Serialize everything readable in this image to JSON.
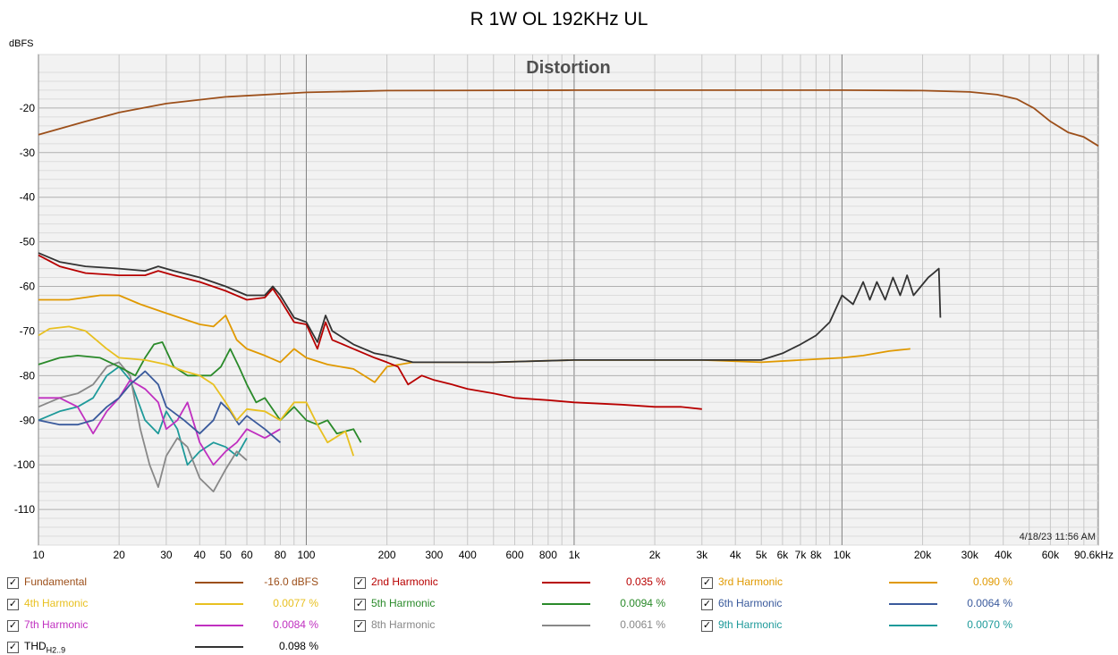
{
  "title": "R 1W OL 192KHz UL",
  "chart_data": {
    "type": "line",
    "title": "Distortion",
    "ylabel": "dBFS",
    "xlabel": "",
    "xscale": "log",
    "xlim": [
      10,
      90600
    ],
    "ylim": [
      -118,
      -8
    ],
    "timestamp": "4/18/23 11:56 AM",
    "x_ticks": [
      {
        "v": 10,
        "l": "10"
      },
      {
        "v": 20,
        "l": "20"
      },
      {
        "v": 30,
        "l": "30"
      },
      {
        "v": 40,
        "l": "40"
      },
      {
        "v": 50,
        "l": "50"
      },
      {
        "v": 60,
        "l": "60"
      },
      {
        "v": 80,
        "l": "80"
      },
      {
        "v": 100,
        "l": "100"
      },
      {
        "v": 200,
        "l": "200"
      },
      {
        "v": 300,
        "l": "300"
      },
      {
        "v": 400,
        "l": "400"
      },
      {
        "v": 600,
        "l": "600"
      },
      {
        "v": 800,
        "l": "800"
      },
      {
        "v": 1000,
        "l": "1k"
      },
      {
        "v": 2000,
        "l": "2k"
      },
      {
        "v": 3000,
        "l": "3k"
      },
      {
        "v": 4000,
        "l": "4k"
      },
      {
        "v": 5000,
        "l": "5k"
      },
      {
        "v": 6000,
        "l": "6k"
      },
      {
        "v": 7000,
        "l": "7k"
      },
      {
        "v": 8000,
        "l": "8k"
      },
      {
        "v": 10000,
        "l": "10k"
      },
      {
        "v": 20000,
        "l": "20k"
      },
      {
        "v": 30000,
        "l": "30k"
      },
      {
        "v": 40000,
        "l": "40k"
      },
      {
        "v": 60000,
        "l": "60k"
      },
      {
        "v": 90600,
        "l": "90.6kHz"
      }
    ],
    "y_ticks": [
      {
        "v": -20,
        "l": "-20"
      },
      {
        "v": -30,
        "l": "-30"
      },
      {
        "v": -40,
        "l": "-40"
      },
      {
        "v": -50,
        "l": "-50"
      },
      {
        "v": -60,
        "l": "-60"
      },
      {
        "v": -70,
        "l": "-70"
      },
      {
        "v": -80,
        "l": "-80"
      },
      {
        "v": -90,
        "l": "-90"
      },
      {
        "v": -100,
        "l": "-100"
      },
      {
        "v": -110,
        "l": "-110"
      }
    ],
    "series": [
      {
        "name": "Fundamental",
        "value": "-16.0 dBFS",
        "color": "#9c4f1a",
        "points": [
          [
            10,
            -26
          ],
          [
            15,
            -23
          ],
          [
            20,
            -21
          ],
          [
            30,
            -19
          ],
          [
            50,
            -17.5
          ],
          [
            100,
            -16.5
          ],
          [
            200,
            -16.1
          ],
          [
            1000,
            -16
          ],
          [
            10000,
            -16
          ],
          [
            20000,
            -16.1
          ],
          [
            30000,
            -16.4
          ],
          [
            38000,
            -17
          ],
          [
            45000,
            -18
          ],
          [
            52000,
            -20
          ],
          [
            60000,
            -23
          ],
          [
            70000,
            -25.5
          ],
          [
            80000,
            -26.5
          ],
          [
            90600,
            -28.5
          ]
        ]
      },
      {
        "name": "2nd Harmonic",
        "value": "0.035 %",
        "color": "#b80000",
        "points": [
          [
            10,
            -53
          ],
          [
            12,
            -55.5
          ],
          [
            15,
            -57
          ],
          [
            20,
            -57.5
          ],
          [
            25,
            -57.5
          ],
          [
            28,
            -56.5
          ],
          [
            32,
            -57.5
          ],
          [
            40,
            -59
          ],
          [
            50,
            -61
          ],
          [
            60,
            -63
          ],
          [
            70,
            -62.5
          ],
          [
            75,
            -60.5
          ],
          [
            80,
            -63
          ],
          [
            90,
            -68
          ],
          [
            100,
            -68.5
          ],
          [
            110,
            -74
          ],
          [
            118,
            -68
          ],
          [
            125,
            -72
          ],
          [
            150,
            -74
          ],
          [
            180,
            -76
          ],
          [
            200,
            -77
          ],
          [
            220,
            -78
          ],
          [
            240,
            -82
          ],
          [
            270,
            -80
          ],
          [
            300,
            -81
          ],
          [
            350,
            -82
          ],
          [
            400,
            -83
          ],
          [
            500,
            -84
          ],
          [
            600,
            -85
          ],
          [
            800,
            -85.5
          ],
          [
            1000,
            -86
          ],
          [
            1500,
            -86.5
          ],
          [
            2000,
            -87
          ],
          [
            2500,
            -87
          ],
          [
            3000,
            -87.5
          ]
        ]
      },
      {
        "name": "3rd Harmonic",
        "value": "0.090 %",
        "color": "#e09900",
        "points": [
          [
            10,
            -63
          ],
          [
            13,
            -63
          ],
          [
            17,
            -62
          ],
          [
            20,
            -62
          ],
          [
            24,
            -64
          ],
          [
            30,
            -66
          ],
          [
            40,
            -68.5
          ],
          [
            45,
            -69
          ],
          [
            50,
            -66.5
          ],
          [
            55,
            -72
          ],
          [
            60,
            -74
          ],
          [
            70,
            -75.5
          ],
          [
            80,
            -77
          ],
          [
            90,
            -74
          ],
          [
            100,
            -76
          ],
          [
            120,
            -77.5
          ],
          [
            150,
            -78.5
          ],
          [
            180,
            -81.5
          ],
          [
            200,
            -78
          ],
          [
            250,
            -77
          ],
          [
            300,
            -77
          ],
          [
            500,
            -77
          ],
          [
            1000,
            -76.5
          ],
          [
            3000,
            -76.5
          ],
          [
            5000,
            -77
          ],
          [
            7000,
            -76.5
          ],
          [
            10000,
            -76
          ],
          [
            12000,
            -75.5
          ],
          [
            15000,
            -74.5
          ],
          [
            18000,
            -74
          ]
        ]
      },
      {
        "name": "4th Harmonic",
        "value": "0.0077 %",
        "color": "#e8c020",
        "points": [
          [
            10,
            -71
          ],
          [
            11,
            -69.5
          ],
          [
            13,
            -69
          ],
          [
            15,
            -70
          ],
          [
            18,
            -74
          ],
          [
            20,
            -76
          ],
          [
            25,
            -76.5
          ],
          [
            30,
            -77.5
          ],
          [
            35,
            -79
          ],
          [
            40,
            -80
          ],
          [
            45,
            -82
          ],
          [
            50,
            -86
          ],
          [
            55,
            -90
          ],
          [
            60,
            -87.5
          ],
          [
            70,
            -88
          ],
          [
            80,
            -90
          ],
          [
            90,
            -86
          ],
          [
            100,
            -86
          ],
          [
            110,
            -91
          ],
          [
            120,
            -95
          ],
          [
            140,
            -92.5
          ],
          [
            150,
            -98
          ]
        ]
      },
      {
        "name": "5th Harmonic",
        "value": "0.0094 %",
        "color": "#2a8a2a",
        "points": [
          [
            10,
            -77.5
          ],
          [
            12,
            -76
          ],
          [
            14,
            -75.5
          ],
          [
            17,
            -76
          ],
          [
            20,
            -78
          ],
          [
            23,
            -80
          ],
          [
            25,
            -76
          ],
          [
            27,
            -73
          ],
          [
            29,
            -72.5
          ],
          [
            32,
            -78
          ],
          [
            36,
            -80
          ],
          [
            40,
            -80
          ],
          [
            44,
            -80
          ],
          [
            48,
            -78
          ],
          [
            52,
            -74
          ],
          [
            56,
            -78
          ],
          [
            60,
            -82
          ],
          [
            65,
            -86
          ],
          [
            70,
            -85
          ],
          [
            80,
            -90
          ],
          [
            90,
            -87
          ],
          [
            100,
            -90
          ],
          [
            110,
            -91
          ],
          [
            120,
            -90
          ],
          [
            130,
            -93
          ],
          [
            150,
            -92
          ],
          [
            160,
            -95
          ]
        ]
      },
      {
        "name": "6th Harmonic",
        "value": "0.0064 %",
        "color": "#3a5a9c",
        "points": [
          [
            10,
            -90
          ],
          [
            12,
            -91
          ],
          [
            14,
            -91
          ],
          [
            16,
            -90
          ],
          [
            18,
            -87
          ],
          [
            20,
            -85
          ],
          [
            22,
            -82
          ],
          [
            25,
            -79
          ],
          [
            28,
            -82
          ],
          [
            30,
            -87
          ],
          [
            35,
            -90
          ],
          [
            40,
            -93
          ],
          [
            45,
            -90
          ],
          [
            48,
            -86
          ],
          [
            52,
            -88
          ],
          [
            56,
            -91
          ],
          [
            60,
            -89
          ],
          [
            70,
            -92
          ],
          [
            80,
            -95
          ]
        ]
      },
      {
        "name": "7th Harmonic",
        "value": "0.0084 %",
        "color": "#c030c0",
        "points": [
          [
            10,
            -85
          ],
          [
            12,
            -85
          ],
          [
            14,
            -87
          ],
          [
            16,
            -93
          ],
          [
            18,
            -88
          ],
          [
            20,
            -85
          ],
          [
            22,
            -81
          ],
          [
            25,
            -83
          ],
          [
            28,
            -86
          ],
          [
            30,
            -92
          ],
          [
            33,
            -90
          ],
          [
            36,
            -86
          ],
          [
            40,
            -95
          ],
          [
            45,
            -100
          ],
          [
            50,
            -97
          ],
          [
            55,
            -95
          ],
          [
            60,
            -92
          ],
          [
            70,
            -94
          ],
          [
            80,
            -92
          ]
        ]
      },
      {
        "name": "8th Harmonic",
        "value": "0.0061 %",
        "color": "#888888",
        "points": [
          [
            10,
            -87
          ],
          [
            12,
            -85
          ],
          [
            14,
            -84
          ],
          [
            16,
            -82
          ],
          [
            18,
            -78
          ],
          [
            20,
            -77
          ],
          [
            22,
            -80
          ],
          [
            24,
            -92
          ],
          [
            26,
            -100
          ],
          [
            28,
            -105
          ],
          [
            30,
            -98
          ],
          [
            33,
            -94
          ],
          [
            36,
            -96
          ],
          [
            40,
            -103
          ],
          [
            45,
            -106
          ],
          [
            50,
            -101
          ],
          [
            55,
            -97
          ],
          [
            60,
            -99
          ]
        ]
      },
      {
        "name": "9th Harmonic",
        "value": "0.0070 %",
        "color": "#1e9a9a",
        "points": [
          [
            10,
            -90
          ],
          [
            12,
            -88
          ],
          [
            14,
            -87
          ],
          [
            16,
            -85
          ],
          [
            18,
            -80
          ],
          [
            20,
            -78
          ],
          [
            22,
            -81
          ],
          [
            25,
            -90
          ],
          [
            28,
            -93
          ],
          [
            30,
            -88
          ],
          [
            33,
            -92
          ],
          [
            36,
            -100
          ],
          [
            40,
            -97
          ],
          [
            45,
            -95
          ],
          [
            50,
            -96
          ],
          [
            55,
            -98
          ],
          [
            60,
            -94
          ]
        ]
      },
      {
        "name": "THD",
        "name_sub": "H2..9",
        "value": "0.098 %",
        "color": "#333333",
        "points": [
          [
            10,
            -52.5
          ],
          [
            12,
            -54.5
          ],
          [
            15,
            -55.5
          ],
          [
            20,
            -56
          ],
          [
            25,
            -56.5
          ],
          [
            28,
            -55.5
          ],
          [
            32,
            -56.5
          ],
          [
            40,
            -58
          ],
          [
            50,
            -60
          ],
          [
            60,
            -62
          ],
          [
            70,
            -62
          ],
          [
            75,
            -60
          ],
          [
            80,
            -62
          ],
          [
            90,
            -67
          ],
          [
            100,
            -68
          ],
          [
            110,
            -72.5
          ],
          [
            118,
            -66.5
          ],
          [
            125,
            -70
          ],
          [
            150,
            -73
          ],
          [
            180,
            -75
          ],
          [
            200,
            -75.5
          ],
          [
            250,
            -77
          ],
          [
            300,
            -77
          ],
          [
            500,
            -77
          ],
          [
            1000,
            -76.5
          ],
          [
            2000,
            -76.5
          ],
          [
            4000,
            -76.5
          ],
          [
            5000,
            -76.5
          ],
          [
            6000,
            -75
          ],
          [
            7000,
            -73
          ],
          [
            8000,
            -71
          ],
          [
            9000,
            -68
          ],
          [
            10000,
            -62
          ],
          [
            11000,
            -64
          ],
          [
            12000,
            -59
          ],
          [
            12700,
            -63
          ],
          [
            13500,
            -59
          ],
          [
            14500,
            -63
          ],
          [
            15500,
            -58
          ],
          [
            16500,
            -62
          ],
          [
            17500,
            -57.5
          ],
          [
            18500,
            -62
          ],
          [
            21000,
            -58
          ],
          [
            22000,
            -57
          ],
          [
            23000,
            -56
          ],
          [
            23300,
            -67
          ]
        ]
      }
    ]
  },
  "legend_check": "✓"
}
